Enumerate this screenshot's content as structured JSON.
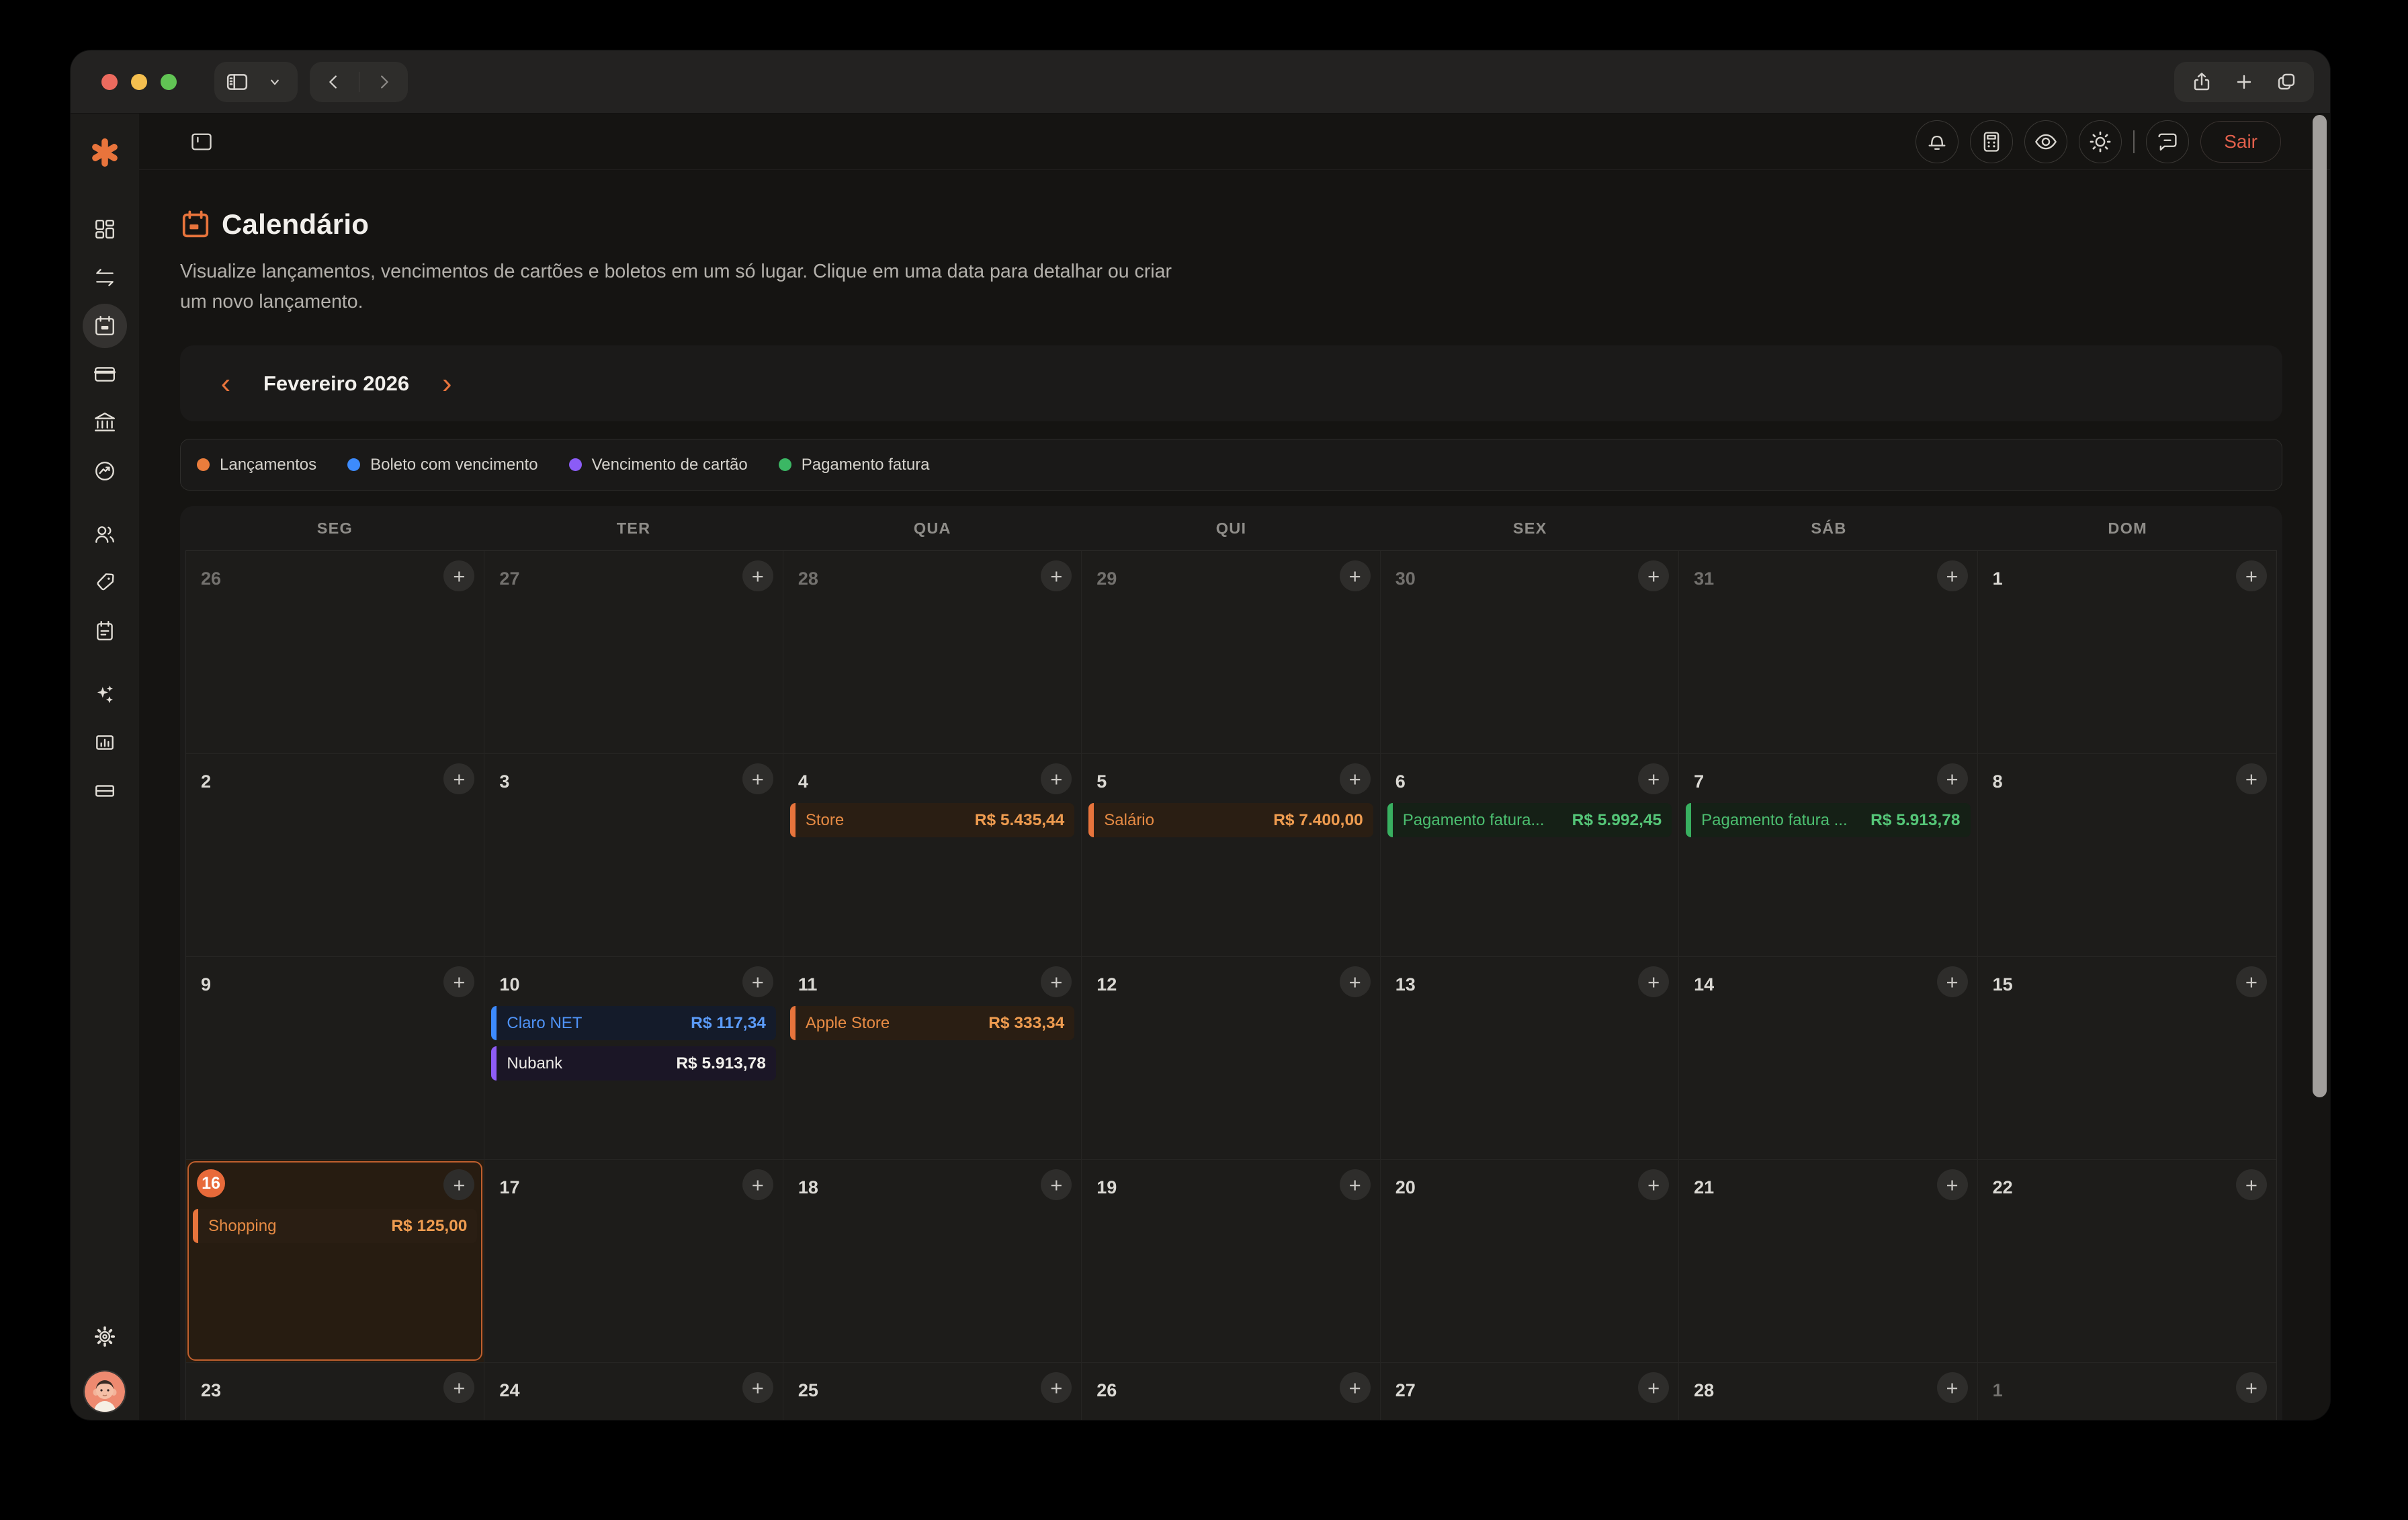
{
  "app": {
    "logout_label": "Sair",
    "page_title": "Calendário",
    "page_description": "Visualize lançamentos, vencimentos de cartões e boletos em um só lugar. Clique em uma data para detalhar ou criar um novo lançamento."
  },
  "month_nav": {
    "prev": "‹",
    "label": "Fevereiro 2026",
    "next": "›"
  },
  "legend": [
    {
      "label": "Lançamentos",
      "color": "#ea7d3c"
    },
    {
      "label": "Boleto com vencimento",
      "color": "#3d8bfd"
    },
    {
      "label": "Vencimento de cartão",
      "color": "#8b5cf6"
    },
    {
      "label": "Pagamento fatura",
      "color": "#3bb764"
    }
  ],
  "weekdays": [
    "SEG",
    "TER",
    "QUA",
    "QUI",
    "SEX",
    "SÁB",
    "DOM"
  ],
  "calendar": {
    "add_label": "+",
    "weeks": [
      [
        {
          "day": 26,
          "outside": true
        },
        {
          "day": 27,
          "outside": true
        },
        {
          "day": 28,
          "outside": true
        },
        {
          "day": 29,
          "outside": true
        },
        {
          "day": 30,
          "outside": true
        },
        {
          "day": 31,
          "outside": true
        },
        {
          "day": 1
        }
      ],
      [
        {
          "day": 2
        },
        {
          "day": 3
        },
        {
          "day": 4,
          "events": [
            {
              "label": "Store",
              "amount": "R$ 5.435,44",
              "type": "launch"
            }
          ]
        },
        {
          "day": 5,
          "events": [
            {
              "label": "Salário",
              "amount": "R$ 7.400,00",
              "type": "launch"
            }
          ]
        },
        {
          "day": 6,
          "events": [
            {
              "label": "Pagamento fatura...",
              "amount": "R$ 5.992,45",
              "type": "invoice"
            }
          ]
        },
        {
          "day": 7,
          "events": [
            {
              "label": "Pagamento fatura ...",
              "amount": "R$ 5.913,78",
              "type": "invoice"
            }
          ]
        },
        {
          "day": 8
        }
      ],
      [
        {
          "day": 9
        },
        {
          "day": 10,
          "events": [
            {
              "label": "Claro NET",
              "amount": "R$ 117,34",
              "type": "boleto"
            },
            {
              "label": "Nubank",
              "amount": "R$ 5.913,78",
              "type": "card"
            }
          ]
        },
        {
          "day": 11,
          "events": [
            {
              "label": "Apple Store",
              "amount": "R$ 333,34",
              "type": "launch"
            }
          ]
        },
        {
          "day": 12
        },
        {
          "day": 13
        },
        {
          "day": 14
        },
        {
          "day": 15
        }
      ],
      [
        {
          "day": 16,
          "today": true,
          "events": [
            {
              "label": "Shopping",
              "amount": "R$ 125,00",
              "type": "launch"
            }
          ]
        },
        {
          "day": 17
        },
        {
          "day": 18
        },
        {
          "day": 19
        },
        {
          "day": 20
        },
        {
          "day": 21
        },
        {
          "day": 22
        }
      ],
      [
        {
          "day": 23
        },
        {
          "day": 24
        },
        {
          "day": 25
        },
        {
          "day": 26
        },
        {
          "day": 27
        },
        {
          "day": 28
        },
        {
          "day": 1,
          "outside": true
        }
      ]
    ]
  },
  "colors": {
    "accent": "#e8743c",
    "logout": "#e2604c",
    "today_border": "#bf5f2e"
  }
}
